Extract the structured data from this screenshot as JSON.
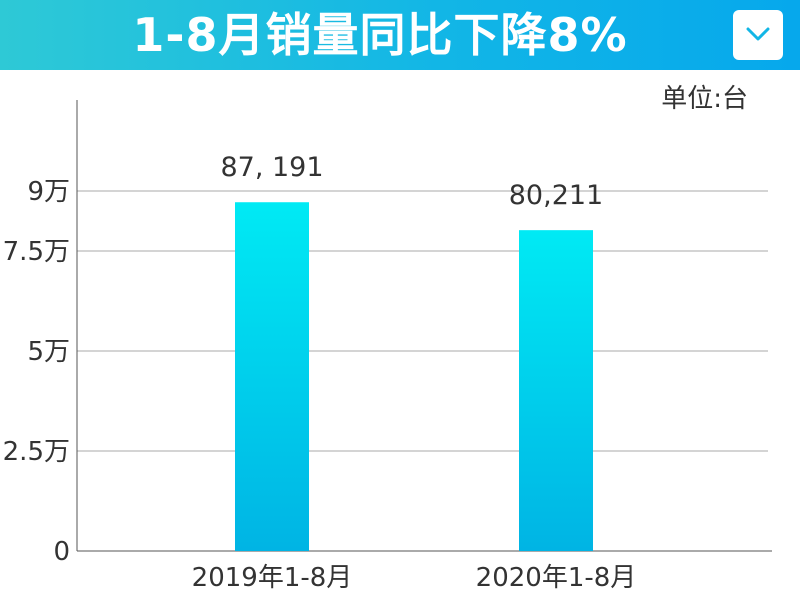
{
  "header": {
    "title": "1-8月销量同比下降8%",
    "dropdown_icon": "chevron-down-icon"
  },
  "colors": {
    "header_start": "#2ec9d6",
    "header_end": "#06a8ec",
    "bar_top": "#00eaf4",
    "bar_bottom": "#00b4e4",
    "grid": "#aaaaaa",
    "text": "#333333"
  },
  "chart_data": {
    "type": "bar",
    "title": "1-8月销量同比下降8%",
    "unit_label": "单位:台",
    "categories": [
      "2019年1-8月",
      "2020年1-8月"
    ],
    "values": [
      87191,
      80211
    ],
    "value_labels": [
      "87, 191",
      "80,211"
    ],
    "ylim": [
      0,
      100000
    ],
    "yticks": [
      0,
      25000,
      50000,
      75000,
      90000
    ],
    "ytick_labels": [
      "0",
      "2.5万",
      "5万",
      "7.5万",
      "9万"
    ],
    "grid": true,
    "legend": "none"
  }
}
